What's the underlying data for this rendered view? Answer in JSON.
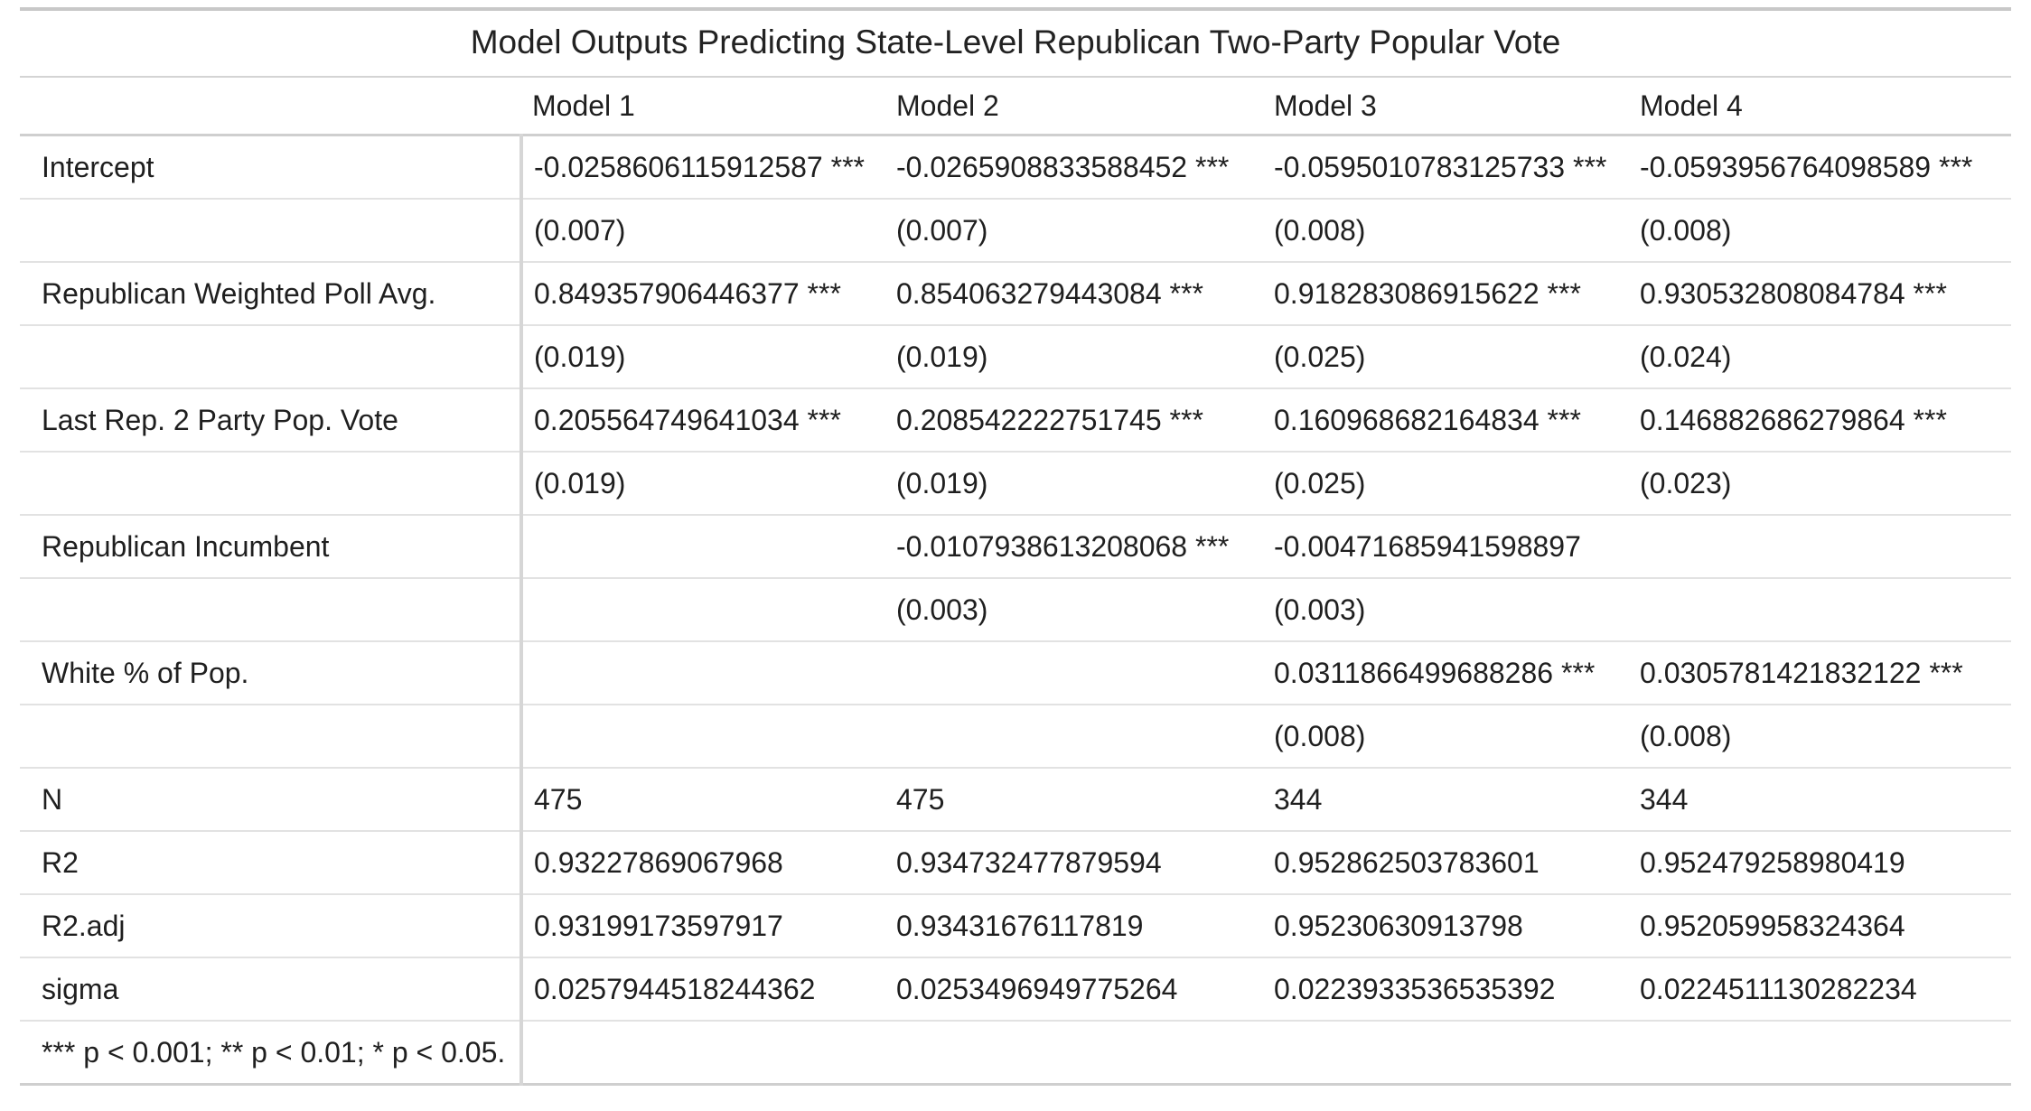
{
  "table": {
    "caption": "Model Outputs Predicting State-Level Republican Two-Party Popular Vote",
    "headers": [
      "",
      "Model 1",
      "Model 2",
      "Model 3",
      "Model 4"
    ],
    "rows": [
      [
        "Intercept",
        "-0.0258606115912587 ***",
        "-0.0265908833588452 ***",
        "-0.0595010783125733 ***",
        "-0.0593956764098589 ***"
      ],
      [
        "",
        "(0.007)",
        "(0.007)",
        "(0.008)",
        "(0.008)"
      ],
      [
        "Republican Weighted Poll Avg.",
        "0.849357906446377 ***",
        "0.854063279443084 ***",
        "0.918283086915622 ***",
        "0.930532808084784 ***"
      ],
      [
        "",
        "(0.019)",
        "(0.019)",
        "(0.025)",
        "(0.024)"
      ],
      [
        "Last Rep. 2 Party Pop. Vote",
        "0.205564749641034 ***",
        "0.208542222751745 ***",
        "0.160968682164834 ***",
        "0.146882686279864 ***"
      ],
      [
        "",
        "(0.019)",
        "(0.019)",
        "(0.025)",
        "(0.023)"
      ],
      [
        "Republican Incumbent",
        "",
        "-0.0107938613208068 ***",
        "-0.00471685941598897",
        ""
      ],
      [
        "",
        "",
        "(0.003)",
        "(0.003)",
        ""
      ],
      [
        "White % of Pop.",
        "",
        "",
        "0.0311866499688286 ***",
        "0.0305781421832122 ***"
      ],
      [
        "",
        "",
        "",
        "(0.008)",
        "(0.008)"
      ],
      [
        "N",
        "475",
        "475",
        "344",
        "344"
      ],
      [
        "R2",
        "0.93227869067968",
        "0.934732477879594",
        "0.952862503783601",
        "0.952479258980419"
      ],
      [
        "R2.adj",
        "0.93199173597917",
        "0.93431676117819",
        "0.95230630913798",
        "0.952059958324364"
      ],
      [
        "sigma",
        "0.0257944518244362",
        "0.0253496949775264",
        "0.0223933536535392",
        "0.0224511130282234"
      ],
      [
        "*** p < 0.001; ** p < 0.01; * p < 0.05.",
        "",
        "",
        "",
        ""
      ]
    ]
  }
}
